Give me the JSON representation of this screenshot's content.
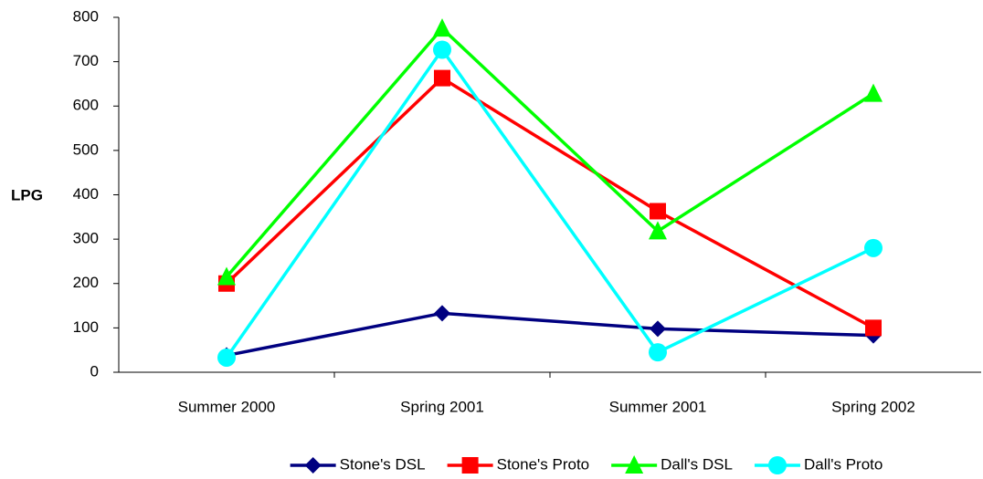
{
  "chart_data": {
    "type": "line",
    "y_label": "LPG",
    "categories": [
      "Summer 2000",
      "Spring 2001",
      "Summer 2001",
      "Spring 2002"
    ],
    "series": [
      {
        "name": "Stone's DSL",
        "color": "#000080",
        "marker": "diamond",
        "values": [
          38,
          133,
          98,
          83
        ]
      },
      {
        "name": "Stone's Proto",
        "color": "#ff0000",
        "marker": "square",
        "values": [
          200,
          663,
          363,
          100
        ]
      },
      {
        "name": "Dall's DSL",
        "color": "#00ff00",
        "marker": "triangle",
        "values": [
          215,
          775,
          318,
          628
        ]
      },
      {
        "name": "Dall's Proto",
        "color": "#00ffff",
        "marker": "circle",
        "values": [
          33,
          727,
          45,
          280
        ]
      }
    ],
    "ylim": [
      0,
      800
    ],
    "yticks": [
      0,
      100,
      200,
      300,
      400,
      500,
      600,
      700,
      800
    ],
    "grid": false,
    "legend": "bottom"
  }
}
